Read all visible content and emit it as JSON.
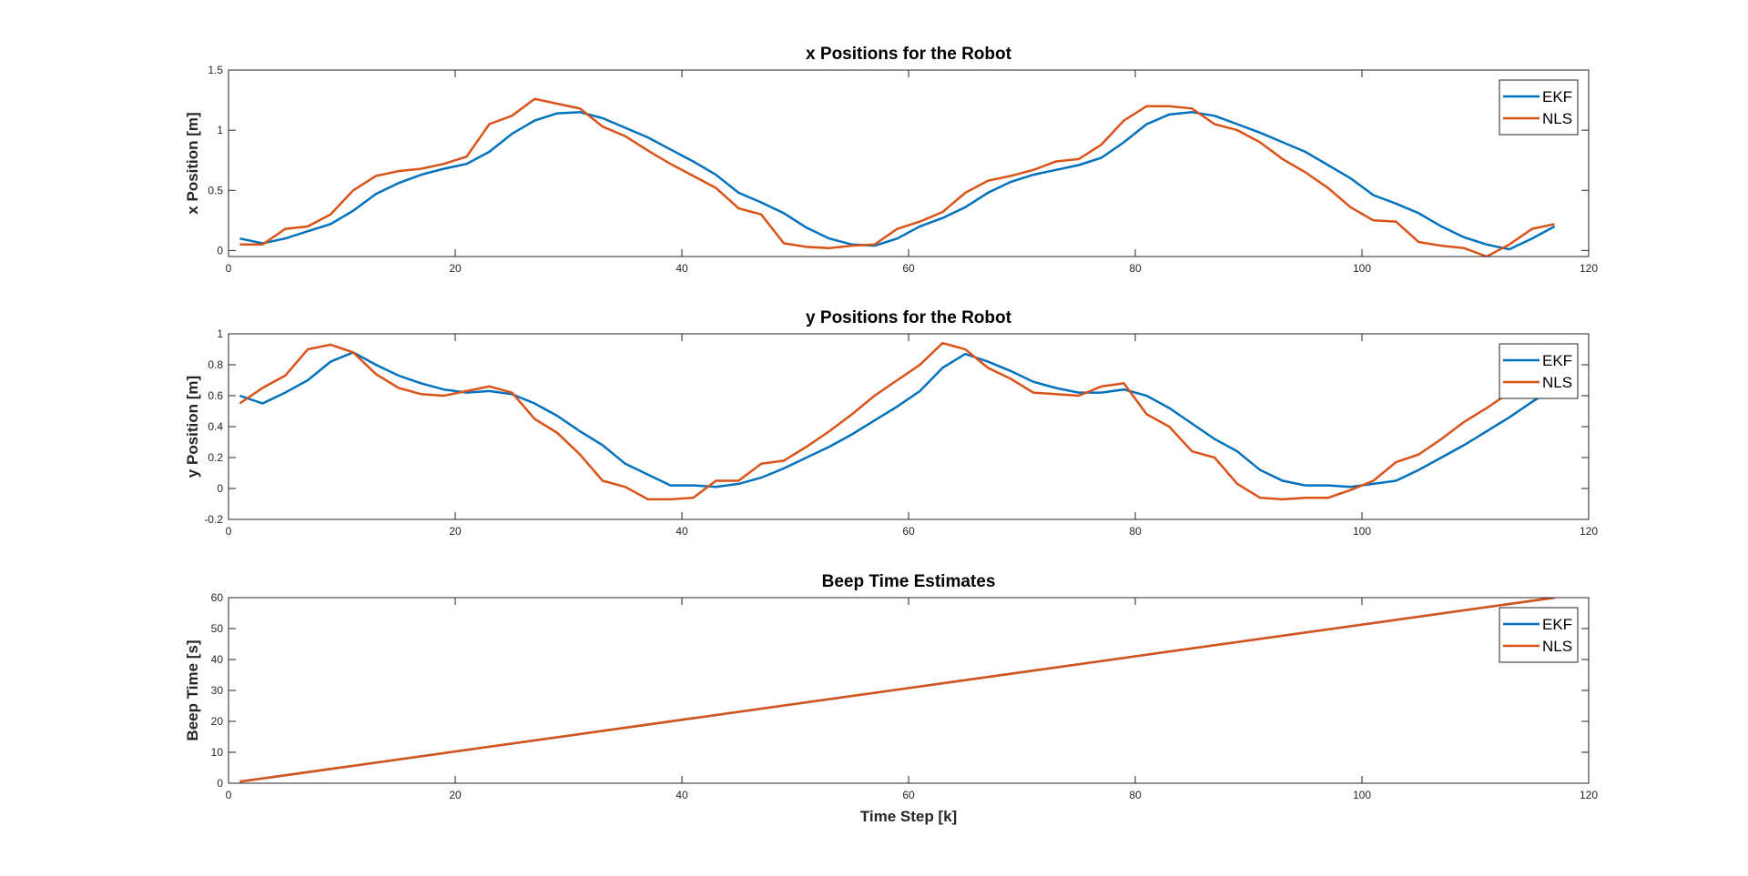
{
  "chart_data": [
    {
      "type": "line",
      "title": "x Positions for the Robot",
      "ylabel": "x Position [m]",
      "x": [
        1,
        3,
        5,
        7,
        9,
        11,
        13,
        15,
        17,
        19,
        21,
        23,
        25,
        27,
        29,
        31,
        33,
        35,
        37,
        39,
        41,
        43,
        45,
        47,
        49,
        51,
        53,
        55,
        57,
        59,
        61,
        63,
        65,
        67,
        69,
        71,
        73,
        75,
        77,
        79,
        81,
        83,
        85,
        87,
        89,
        91,
        93,
        95,
        97,
        99,
        101,
        103,
        105,
        107,
        109,
        111,
        113,
        115,
        117
      ],
      "series": [
        {
          "name": "EKF",
          "color": "#0072BD",
          "values": [
            0.1,
            0.06,
            0.1,
            0.16,
            0.22,
            0.33,
            0.47,
            0.56,
            0.63,
            0.68,
            0.72,
            0.82,
            0.97,
            1.08,
            1.14,
            1.15,
            1.1,
            1.02,
            0.94,
            0.84,
            0.74,
            0.63,
            0.48,
            0.4,
            0.31,
            0.19,
            0.1,
            0.05,
            0.04,
            0.1,
            0.2,
            0.27,
            0.36,
            0.48,
            0.57,
            0.63,
            0.67,
            0.71,
            0.77,
            0.9,
            1.05,
            1.13,
            1.15,
            1.12,
            1.05,
            0.98,
            0.9,
            0.82,
            0.71,
            0.6,
            0.46,
            0.39,
            0.31,
            0.2,
            0.11,
            0.05,
            0.01,
            0.1,
            0.2
          ]
        },
        {
          "name": "NLS",
          "color": "#D95319",
          "values": [
            0.05,
            0.05,
            0.18,
            0.2,
            0.3,
            0.5,
            0.62,
            0.66,
            0.68,
            0.72,
            0.78,
            1.05,
            1.12,
            1.26,
            1.22,
            1.18,
            1.03,
            0.95,
            0.83,
            0.72,
            0.62,
            0.52,
            0.35,
            0.3,
            0.06,
            0.03,
            0.02,
            0.04,
            0.05,
            0.18,
            0.24,
            0.32,
            0.48,
            0.58,
            0.62,
            0.67,
            0.74,
            0.76,
            0.88,
            1.08,
            1.2,
            1.2,
            1.18,
            1.05,
            1.0,
            0.9,
            0.76,
            0.65,
            0.52,
            0.36,
            0.25,
            0.24,
            0.07,
            0.04,
            0.02,
            -0.05,
            0.05,
            0.18,
            0.22
          ]
        }
      ],
      "xlim": [
        0,
        120
      ],
      "xticks": [
        0,
        20,
        40,
        60,
        80,
        100,
        120
      ],
      "ylim": [
        -0.05,
        1.5
      ],
      "yticks": [
        0,
        0.5,
        1,
        1.5
      ],
      "legend": "upper right"
    },
    {
      "type": "line",
      "title": "y Positions for the Robot",
      "ylabel": "y Position [m]",
      "x": [
        1,
        3,
        5,
        7,
        9,
        11,
        13,
        15,
        17,
        19,
        21,
        23,
        25,
        27,
        29,
        31,
        33,
        35,
        37,
        39,
        41,
        43,
        45,
        47,
        49,
        51,
        53,
        55,
        57,
        59,
        61,
        63,
        65,
        67,
        69,
        71,
        73,
        75,
        77,
        79,
        81,
        83,
        85,
        87,
        89,
        91,
        93,
        95,
        97,
        99,
        101,
        103,
        105,
        107,
        109,
        111,
        113,
        115,
        117
      ],
      "series": [
        {
          "name": "EKF",
          "color": "#0072BD",
          "values": [
            0.6,
            0.55,
            0.62,
            0.7,
            0.82,
            0.88,
            0.8,
            0.73,
            0.68,
            0.64,
            0.62,
            0.63,
            0.61,
            0.55,
            0.47,
            0.37,
            0.28,
            0.16,
            0.09,
            0.02,
            0.02,
            0.01,
            0.03,
            0.07,
            0.13,
            0.2,
            0.27,
            0.35,
            0.44,
            0.53,
            0.63,
            0.78,
            0.87,
            0.82,
            0.76,
            0.69,
            0.65,
            0.62,
            0.62,
            0.64,
            0.6,
            0.52,
            0.42,
            0.32,
            0.24,
            0.12,
            0.05,
            0.02,
            0.02,
            0.01,
            0.03,
            0.05,
            0.12,
            0.2,
            0.28,
            0.37,
            0.46,
            0.56,
            0.65
          ]
        },
        {
          "name": "NLS",
          "color": "#D95319",
          "values": [
            0.55,
            0.65,
            0.73,
            0.9,
            0.93,
            0.88,
            0.74,
            0.65,
            0.61,
            0.6,
            0.63,
            0.66,
            0.62,
            0.45,
            0.36,
            0.22,
            0.05,
            0.01,
            -0.07,
            -0.07,
            -0.06,
            0.05,
            0.05,
            0.16,
            0.18,
            0.27,
            0.37,
            0.48,
            0.6,
            0.7,
            0.8,
            0.94,
            0.9,
            0.78,
            0.71,
            0.62,
            0.61,
            0.6,
            0.66,
            0.68,
            0.48,
            0.4,
            0.24,
            0.2,
            0.03,
            -0.06,
            -0.07,
            -0.06,
            -0.06,
            -0.01,
            0.05,
            0.17,
            0.22,
            0.32,
            0.43,
            0.52,
            0.62,
            0.68,
            0.7
          ]
        }
      ],
      "xlim": [
        0,
        120
      ],
      "xticks": [
        0,
        20,
        40,
        60,
        80,
        100,
        120
      ],
      "ylim": [
        -0.2,
        1
      ],
      "yticks": [
        -0.2,
        0,
        0.2,
        0.4,
        0.6,
        0.8,
        1
      ],
      "legend": "upper right"
    },
    {
      "type": "line",
      "title": "Beep Time Estimates",
      "ylabel": "Beep Time [s]",
      "xlabel": "Time Step [k]",
      "x": [
        1,
        117
      ],
      "series": [
        {
          "name": "EKF",
          "color": "#0072BD",
          "values": [
            0.5,
            60
          ]
        },
        {
          "name": "NLS",
          "color": "#D95319",
          "values": [
            0.5,
            60
          ]
        }
      ],
      "xlim": [
        0,
        120
      ],
      "xticks": [
        0,
        20,
        40,
        60,
        80,
        100,
        120
      ],
      "ylim": [
        0,
        60
      ],
      "yticks": [
        0,
        10,
        20,
        30,
        40,
        50,
        60
      ],
      "legend": "upper right"
    }
  ]
}
